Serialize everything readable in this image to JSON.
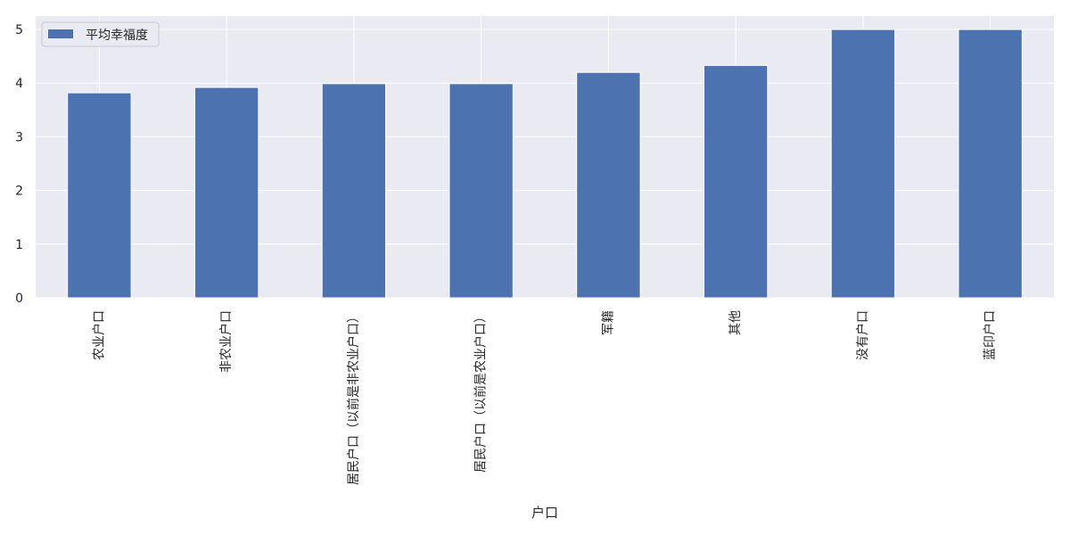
{
  "chart_data": {
    "type": "bar",
    "categories": [
      "农业户口",
      "非农业户口",
      "居民户口（以前是非农业户口）",
      "居民户口（以前是农业户口）",
      "军籍",
      "其他",
      "没有户口",
      "蓝印户口"
    ],
    "series": [
      {
        "name": "平均幸福度",
        "values": [
          3.82,
          3.92,
          3.99,
          3.99,
          4.2,
          4.33,
          5.0,
          5.0
        ]
      }
    ],
    "y_ticks": [
      "0",
      "1",
      "2",
      "3",
      "4",
      "5"
    ],
    "ylim": [
      0,
      5.25
    ],
    "xlabel": "户口",
    "ylabel": "",
    "grid": true,
    "legend_position": "top-left",
    "colors": {
      "bar": "#4c72b0",
      "background": "#eaeaf2",
      "grid": "#ffffff"
    }
  }
}
